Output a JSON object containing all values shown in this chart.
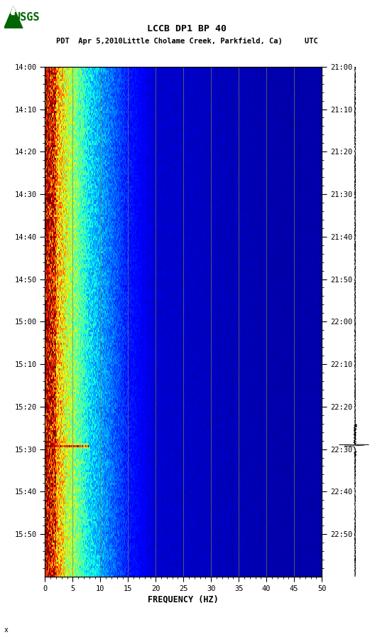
{
  "title_line1": "LCCB DP1 BP 40",
  "title_line2": "PDT  Apr 5,2010Little Cholame Creek, Parkfield, Ca)     UTC",
  "left_time_labels": [
    "14:00",
    "14:10",
    "14:20",
    "14:30",
    "14:40",
    "14:50",
    "15:00",
    "15:10",
    "15:20",
    "15:30",
    "15:40",
    "15:50"
  ],
  "right_time_labels": [
    "21:00",
    "21:10",
    "21:20",
    "21:30",
    "21:40",
    "21:50",
    "22:00",
    "22:10",
    "22:20",
    "22:30",
    "22:40",
    "22:50"
  ],
  "freq_ticks": [
    0,
    5,
    10,
    15,
    20,
    25,
    30,
    35,
    40,
    45,
    50
  ],
  "freq_labels": [
    "0",
    "5",
    "10",
    "15",
    "20",
    "25",
    "30",
    "35",
    "40",
    "45",
    "50"
  ],
  "xlabel": "FREQUENCY (HZ)",
  "grid_color": "#7f7f50",
  "grid_freqs": [
    5,
    10,
    15,
    20,
    25,
    30,
    35,
    40,
    45
  ]
}
